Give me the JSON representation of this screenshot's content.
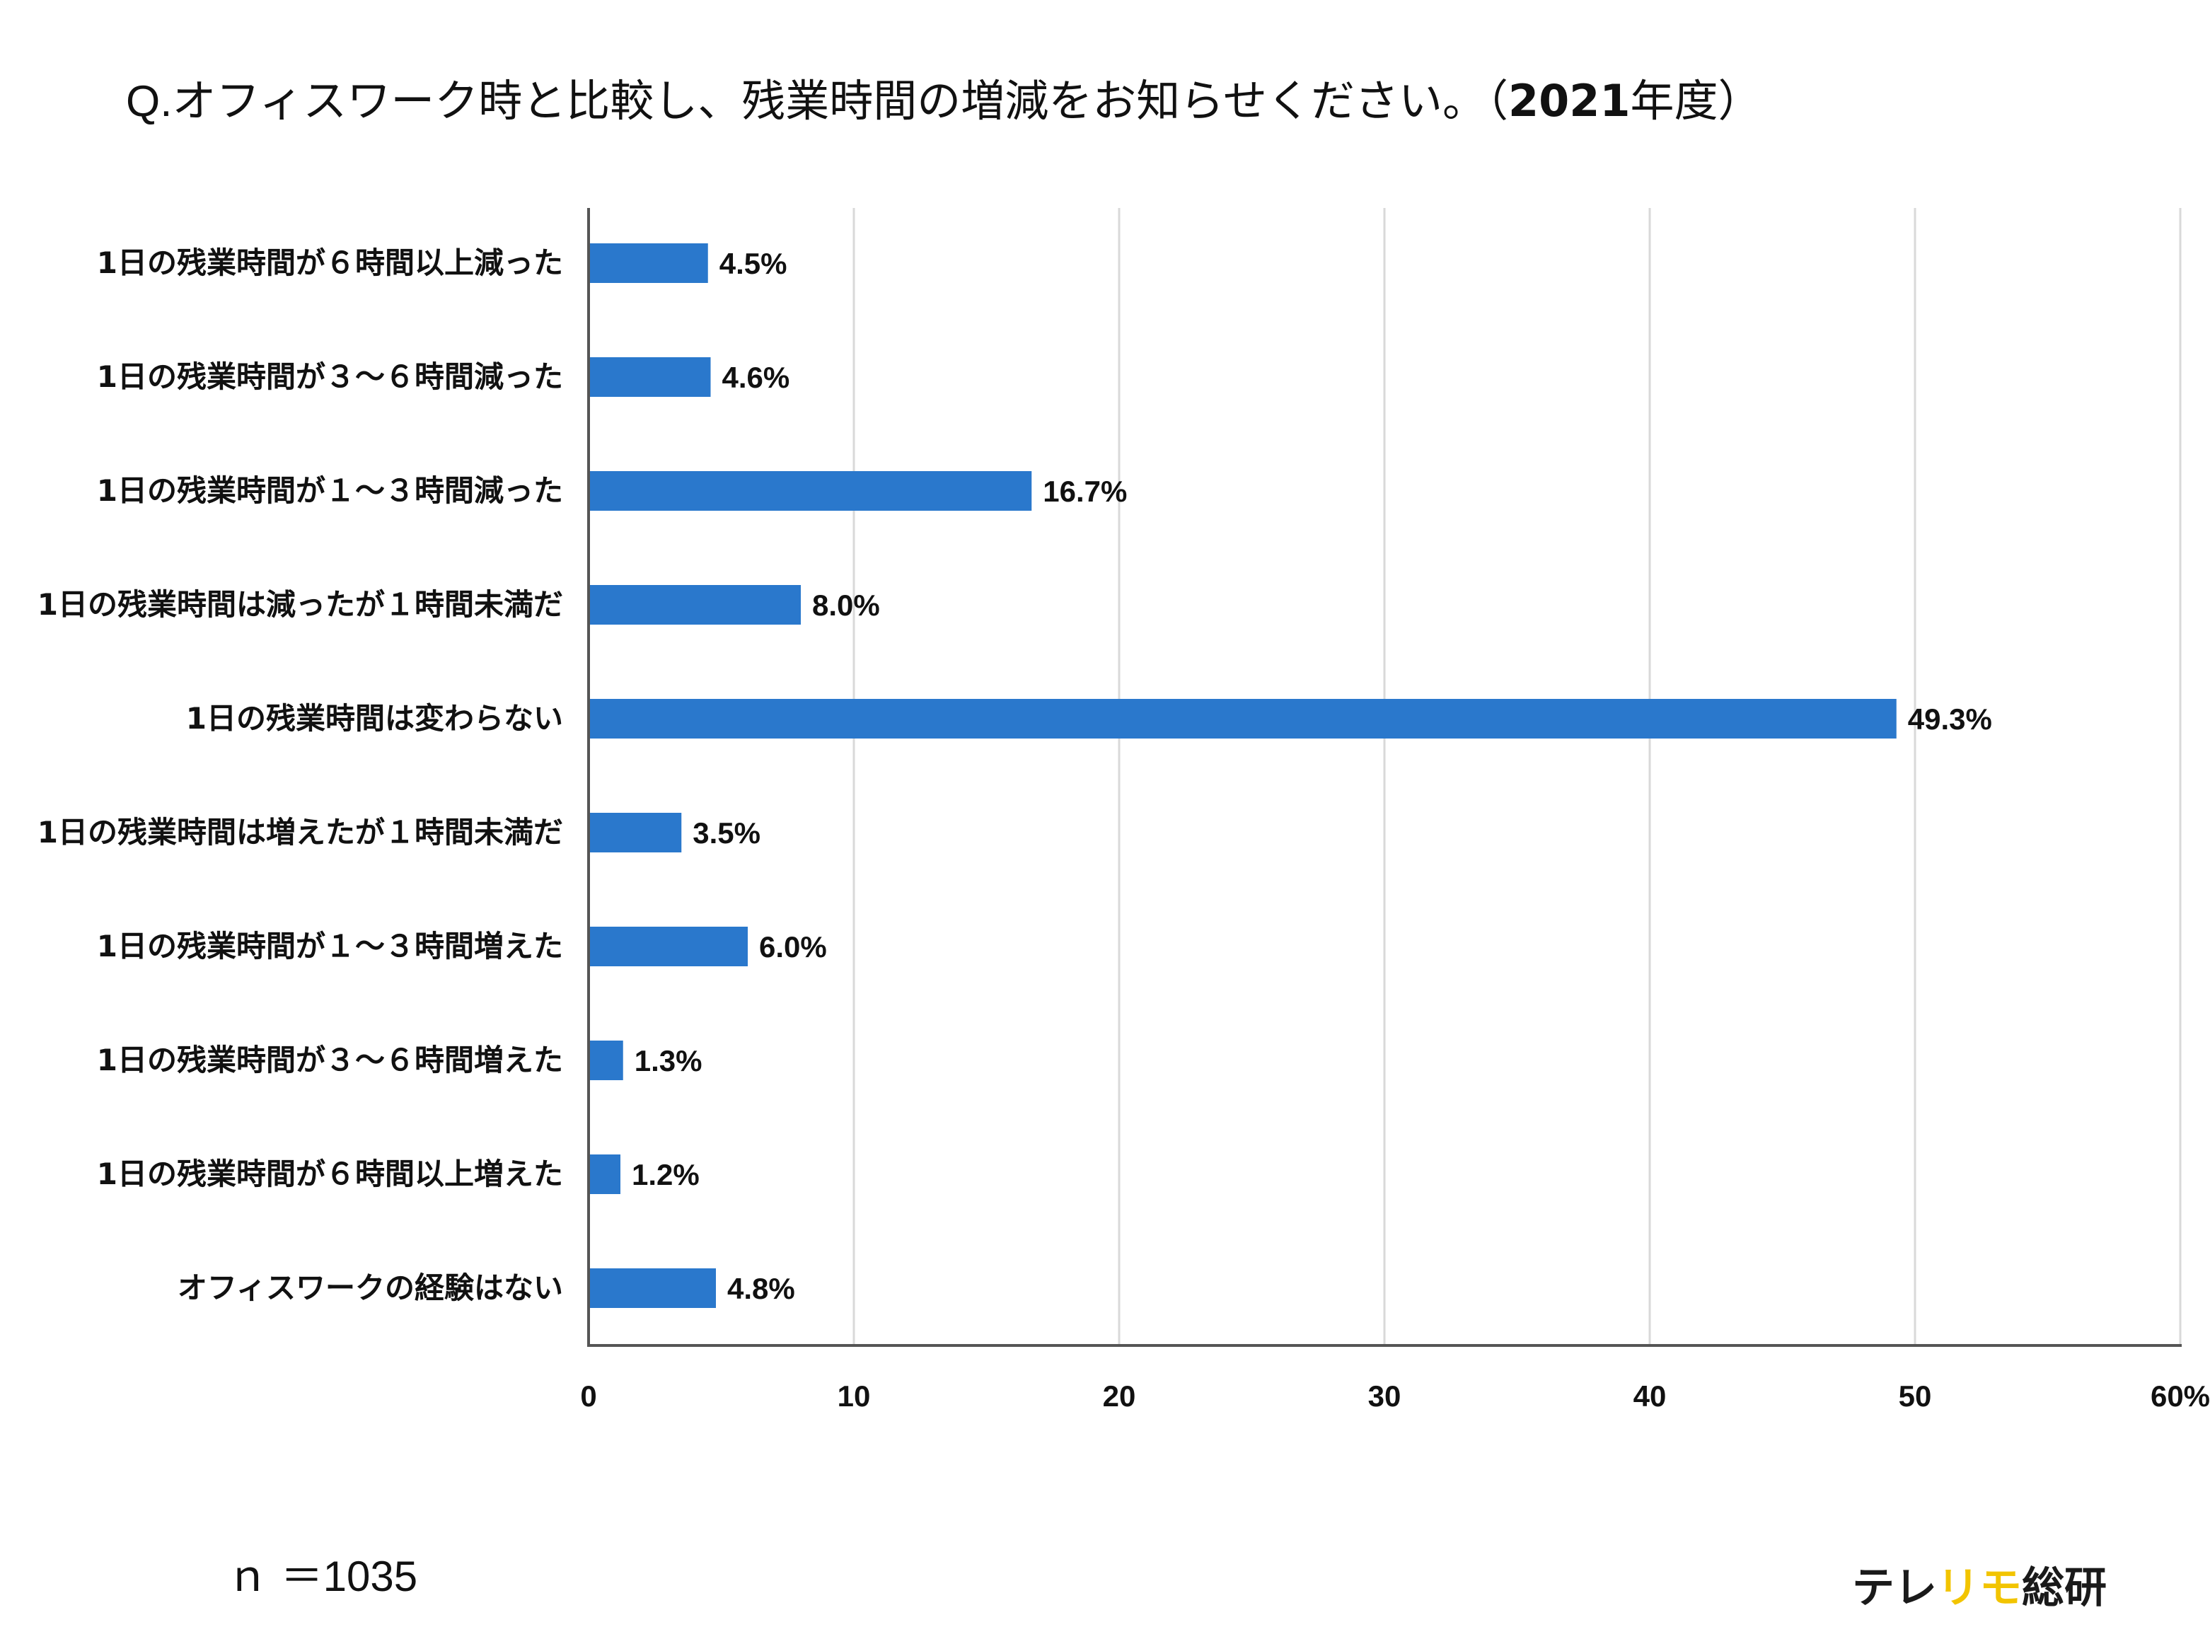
{
  "title": {
    "prefix": "Q.",
    "text": "オフィスワーク時と比較し、残業時間の増減をお知らせください。（",
    "year": "2021",
    "suffix": "年度）"
  },
  "chart_data": {
    "type": "bar",
    "orientation": "horizontal",
    "title": "Q.オフィスワーク時と比較し、残業時間の増減をお知らせください。（2021年度）",
    "categories": [
      "1日の残業時間が６時間以上減った",
      "1日の残業時間が３～６時間減った",
      "1日の残業時間が１～３時間減った",
      "1日の残業時間は減ったが１時間未満だ",
      "1日の残業時間は変わらない",
      "1日の残業時間は増えたが１時間未満だ",
      "1日の残業時間が１～３時間増えた",
      "1日の残業時間が３～６時間増えた",
      "1日の残業時間が６時間以上増えた",
      "オフィスワークの経験はない"
    ],
    "values": [
      4.5,
      4.6,
      16.7,
      8.0,
      49.3,
      3.5,
      6.0,
      1.3,
      1.2,
      4.8
    ],
    "data_labels": [
      "4.5%",
      "4.6%",
      "16.7%",
      "8.0%",
      "49.3%",
      "3.5%",
      "6.0%",
      "1.3%",
      "1.2%",
      "4.8%"
    ],
    "xlim": [
      0,
      60
    ],
    "xticks": [
      0,
      10,
      20,
      30,
      40,
      50,
      60
    ],
    "xtick_labels": [
      "0",
      "10",
      "20",
      "30",
      "40",
      "50",
      "60%"
    ],
    "xlabel": "",
    "ylabel": "",
    "grid": true,
    "colors": {
      "bar": "#2a78cc",
      "grid": "#d9d9d9",
      "axis": "#555555"
    }
  },
  "footnote": "ｎ ＝1035",
  "brand": {
    "part1": "テレ",
    "accent": "リモ",
    "part2": "総研",
    "accent_color": "#f2c400"
  }
}
